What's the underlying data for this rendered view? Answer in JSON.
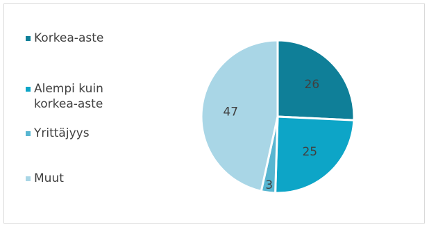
{
  "chart_data": {
    "type": "pie",
    "title": "",
    "slices": [
      {
        "label": "Korkea-aste",
        "value": 26,
        "color": "#0f7f98"
      },
      {
        "label": "Alempi kuin\nkorkea-aste",
        "value": 25,
        "color": "#0da5c7"
      },
      {
        "label": "Yrittäjyys",
        "value": 3,
        "color": "#58b6d1"
      },
      {
        "label": "Muut",
        "value": 47,
        "color": "#a9d6e6"
      }
    ],
    "legend_placement": "left",
    "data_labels": [
      "26",
      "25",
      "3",
      "47"
    ]
  }
}
